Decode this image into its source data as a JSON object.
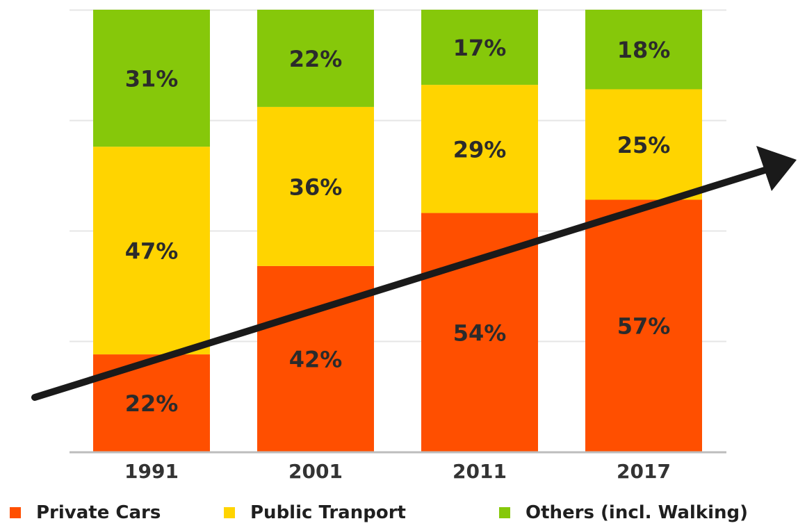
{
  "chart_data": {
    "type": "bar",
    "stacked": true,
    "categories": [
      "1991",
      "2001",
      "2011",
      "2017"
    ],
    "series": [
      {
        "name": "Private Cars",
        "values": [
          22,
          42,
          54,
          57
        ],
        "color": "#ff4f00"
      },
      {
        "name": "Public Tranport",
        "values": [
          47,
          36,
          29,
          25
        ],
        "color": "#ffd400"
      },
      {
        "name": "Others (incl. Walking)",
        "values": [
          31,
          22,
          17,
          18
        ],
        "color": "#86c80a"
      }
    ],
    "ylim": [
      0,
      100
    ],
    "grid": true,
    "legend_position": "bottom",
    "trend_arrow": true,
    "label_color": "#2b2b2b",
    "axis_color": "#bdbdbd"
  }
}
